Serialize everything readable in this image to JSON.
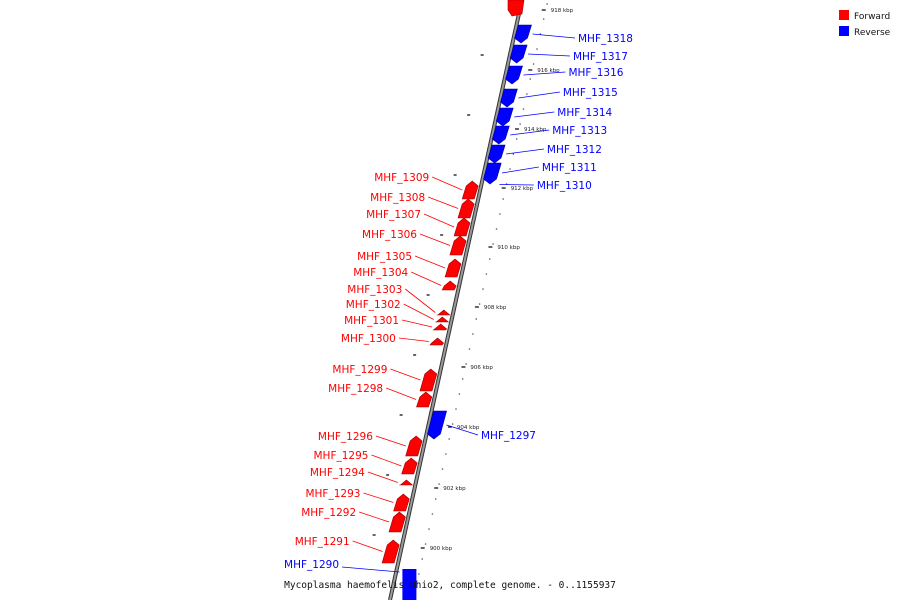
{
  "legend": {
    "items": [
      {
        "label": "Forward",
        "color": "#ff0000"
      },
      {
        "label": "Reverse",
        "color": "#0000ff"
      }
    ]
  },
  "caption": "Mycoplasma haemofelis Ohio2, complete genome. - 0..1155937",
  "ticks": [
    "900 kbp",
    "902 kbp",
    "904 kbp",
    "906 kbp",
    "908 kbp",
    "910 kbp",
    "912 kbp",
    "914 kbp",
    "916 kbp",
    "918 kbp"
  ],
  "genes": {
    "forward": [
      "MHF_1309",
      "MHF_1308",
      "MHF_1307",
      "MHF_1306",
      "MHF_1305",
      "MHF_1304",
      "MHF_1303",
      "MHF_1302",
      "MHF_1301",
      "MHF_1300",
      "MHF_1299",
      "MHF_1298",
      "MHF_1296",
      "MHF_1295",
      "MHF_1294",
      "MHF_1293",
      "MHF_1292",
      "MHF_1291"
    ],
    "reverse": [
      "MHF_1318",
      "MHF_1317",
      "MHF_1316",
      "MHF_1315",
      "MHF_1314",
      "MHF_1313",
      "MHF_1312",
      "MHF_1311",
      "MHF_1310",
      "MHF_1297",
      "MHF_1290"
    ]
  },
  "colors": {
    "forward": "#ff0000",
    "reverse": "#0000ff",
    "backbone": "#888888"
  }
}
